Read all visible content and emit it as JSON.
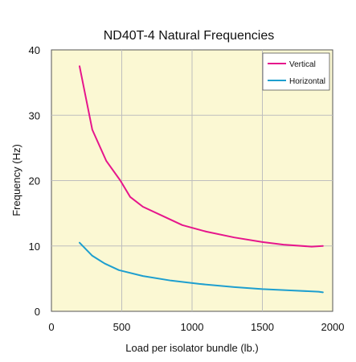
{
  "chart_data": {
    "type": "line",
    "title": "ND40T-4 Natural Frequencies",
    "xlabel": "Load per isolator bundle (lb.)",
    "ylabel": "Frequency (Hz)",
    "xlim": [
      0,
      2000
    ],
    "ylim": [
      0,
      40
    ],
    "xticks": [
      "0",
      "500",
      "1000",
      "1500",
      "2000"
    ],
    "yticks": [
      "0",
      "10",
      "20",
      "30",
      "40"
    ],
    "grid": true,
    "legend_position": "top-right",
    "plot_background": "#FBF8D3",
    "grid_color": "#BEBEBE",
    "series": [
      {
        "name": "Vertical",
        "color": "#E6168C",
        "x": [
          200,
          290,
          390,
          490,
          560,
          650,
          800,
          930,
          1100,
          1300,
          1500,
          1650,
          1850,
          1930
        ],
        "y": [
          37.5,
          27.8,
          23.0,
          20.0,
          17.5,
          16.0,
          14.5,
          13.2,
          12.2,
          11.3,
          10.6,
          10.2,
          9.9,
          10.0
        ]
      },
      {
        "name": "Horizontal",
        "color": "#1E9FCF",
        "x": [
          200,
          290,
          380,
          480,
          650,
          850,
          1050,
          1300,
          1500,
          1700,
          1900,
          1930
        ],
        "y": [
          10.5,
          8.5,
          7.3,
          6.3,
          5.4,
          4.7,
          4.2,
          3.7,
          3.4,
          3.2,
          3.0,
          2.9
        ]
      }
    ]
  }
}
